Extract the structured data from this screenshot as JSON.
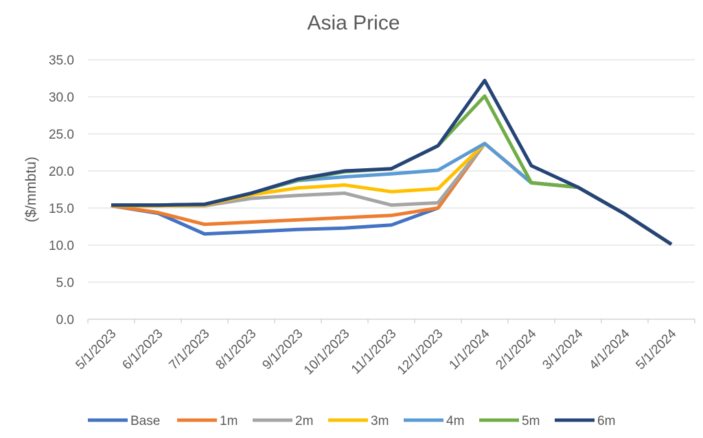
{
  "chart_data": {
    "type": "line",
    "title": "Asia Price",
    "xlabel": "",
    "ylabel": "($/mmbtu)",
    "ylim": [
      0,
      35
    ],
    "yticks": [
      "0.0",
      "5.0",
      "10.0",
      "15.0",
      "20.0",
      "25.0",
      "30.0",
      "35.0"
    ],
    "grid": true,
    "legend": "bottom",
    "categories": [
      "5/1/2023",
      "6/1/2023",
      "7/1/2023",
      "8/1/2023",
      "9/1/2023",
      "10/1/2023",
      "11/1/2023",
      "12/1/2023",
      "1/1/2024",
      "2/1/2024",
      "3/1/2024",
      "4/1/2024",
      "5/1/2024"
    ],
    "series": [
      {
        "name": "Base",
        "color": "#4472c4",
        "values": [
          15.3,
          14.3,
          11.5,
          11.8,
          12.1,
          12.3,
          12.7,
          15.0,
          23.7,
          18.4,
          17.8,
          14.2,
          10.1
        ]
      },
      {
        "name": "1m",
        "color": "#ed7d31",
        "values": [
          15.3,
          14.4,
          12.8,
          13.1,
          13.4,
          13.7,
          14.0,
          15.0,
          23.7,
          18.4,
          17.8,
          14.2,
          10.1
        ]
      },
      {
        "name": "2m",
        "color": "#a5a5a5",
        "values": [
          15.3,
          15.3,
          15.3,
          16.3,
          16.7,
          17.0,
          15.4,
          15.7,
          23.7,
          18.4,
          17.8,
          14.2,
          10.1
        ]
      },
      {
        "name": "3m",
        "color": "#ffc000",
        "values": [
          15.3,
          15.3,
          15.4,
          16.8,
          17.7,
          18.1,
          17.2,
          17.6,
          23.7,
          18.4,
          17.8,
          14.2,
          10.1
        ]
      },
      {
        "name": "4m",
        "color": "#5b9bd5",
        "values": [
          15.4,
          15.4,
          15.5,
          17.0,
          18.7,
          19.2,
          19.6,
          20.1,
          23.7,
          18.4,
          17.8,
          14.2,
          10.1
        ]
      },
      {
        "name": "5m",
        "color": "#70ad47",
        "values": [
          15.4,
          15.4,
          15.5,
          17.0,
          18.8,
          19.9,
          20.3,
          23.4,
          30.1,
          18.4,
          17.8,
          14.2,
          10.1
        ]
      },
      {
        "name": "6m",
        "color": "#264478",
        "values": [
          15.4,
          15.4,
          15.5,
          17.0,
          18.9,
          20.0,
          20.3,
          23.4,
          32.2,
          20.7,
          17.8,
          14.2,
          10.1
        ]
      }
    ]
  }
}
